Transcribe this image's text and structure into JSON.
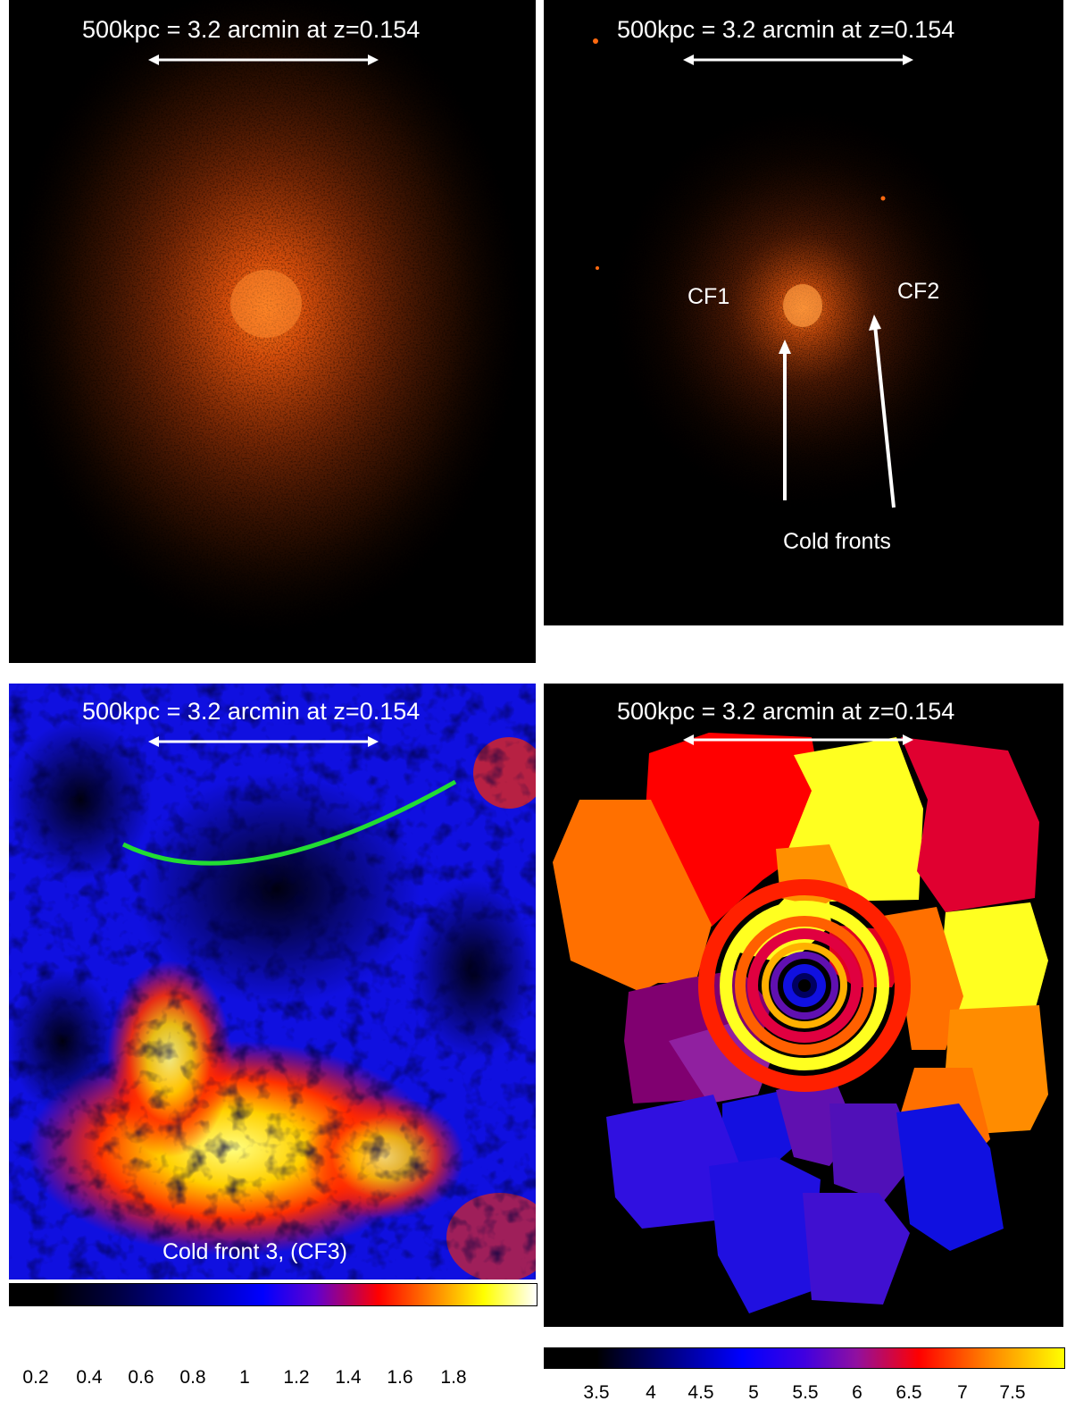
{
  "panels": {
    "top_left": {
      "scale_label": "500kpc = 3.2 arcmin at z=0.154"
    },
    "top_right": {
      "scale_label": "500kpc = 3.2 arcmin at z=0.154",
      "labels": {
        "cf1": "CF1",
        "cf2": "CF2",
        "cold_fronts": "Cold fronts"
      }
    },
    "bottom_left": {
      "scale_label": "500kpc = 3.2 arcmin at z=0.154",
      "cf3_label": "Cold front 3, (CF3)",
      "colorbar_ticks": [
        "0.2",
        "0.4",
        "0.6",
        "0.8",
        "1",
        "1.2",
        "1.4",
        "1.6",
        "1.8"
      ]
    },
    "bottom_right": {
      "scale_label": "500kpc = 3.2 arcmin at z=0.154",
      "colorbar_ticks": [
        "3.5",
        "4",
        "4.5",
        "5",
        "5.5",
        "6",
        "6.5",
        "7",
        "7.5"
      ]
    }
  },
  "colors": {
    "cf3_curve": "#22dd33",
    "arrow": "#ffffff",
    "xray_glow": "#ff6a10"
  }
}
